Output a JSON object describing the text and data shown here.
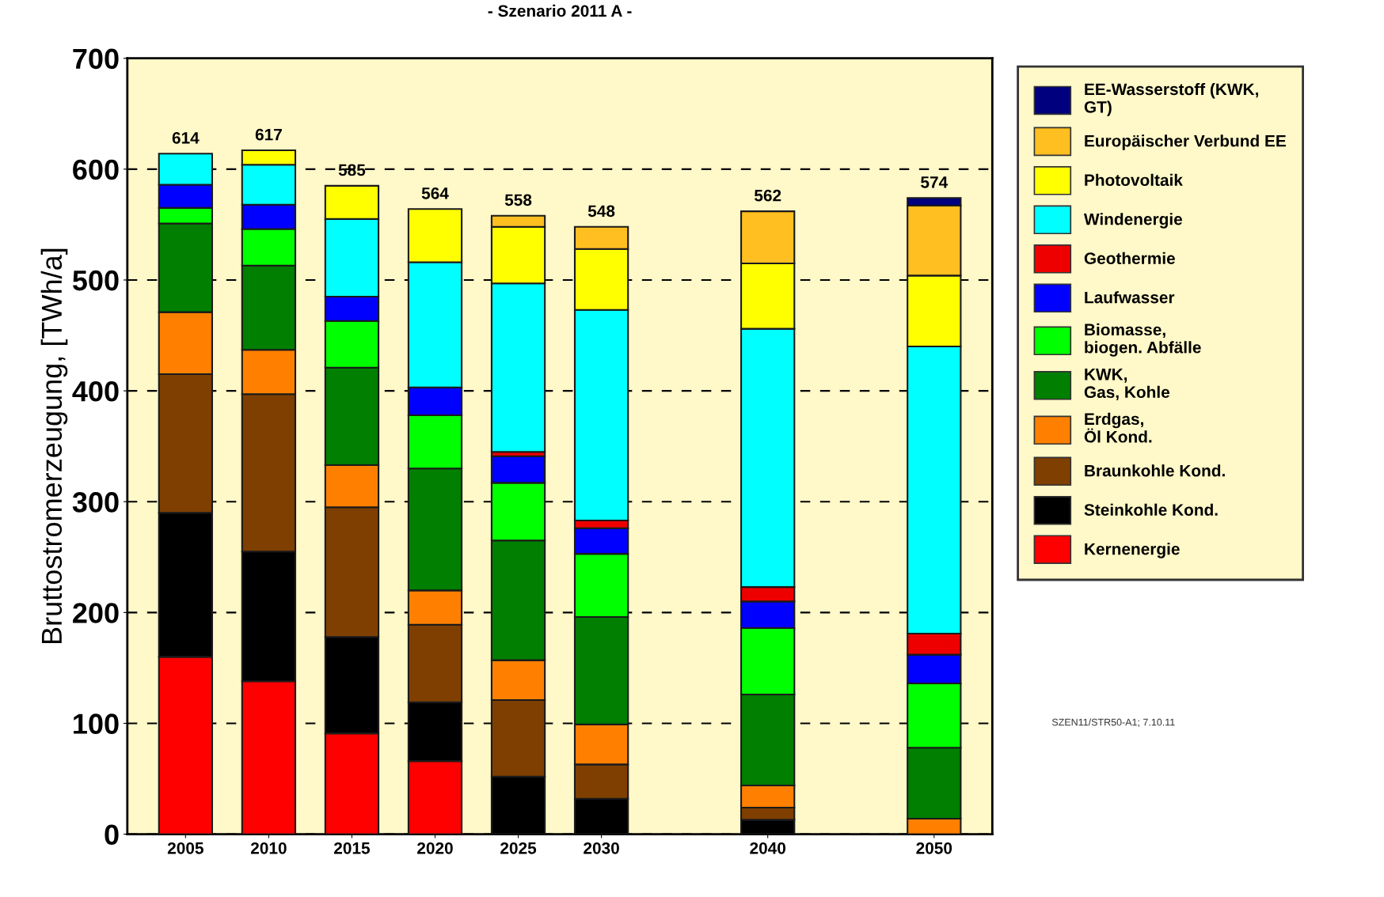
{
  "chart_data": {
    "type": "bar",
    "stacked": true,
    "title": "- Szenario 2011 A -",
    "ylabel": "Bruttostromerzeugung, [TWh/a]",
    "x": [
      2005,
      2010,
      2015,
      2020,
      2025,
      2030,
      2040,
      2050
    ],
    "xlim": [
      2001.5,
      2053.5
    ],
    "xticks": [
      2005,
      2010,
      2015,
      2020,
      2025,
      2030,
      2040,
      2050
    ],
    "ylim": [
      0,
      700
    ],
    "yticks": [
      0,
      100,
      200,
      300,
      400,
      500,
      600,
      700
    ],
    "grid": "y",
    "legend": "right",
    "series": [
      {
        "name": "Kernenergie",
        "color": "#ff0000",
        "values": [
          160,
          138,
          91,
          66,
          0,
          0,
          0,
          0
        ]
      },
      {
        "name": "Steinkohle Kond.",
        "color": "#000000",
        "values": [
          130,
          117,
          87,
          53,
          52,
          32,
          13,
          0
        ]
      },
      {
        "name": "Braunkohle Kond.",
        "color": "#7f3f00",
        "values": [
          125,
          142,
          117,
          70,
          69,
          31,
          11,
          0
        ]
      },
      {
        "name": "Erdgas, Öl Kond.",
        "color": "#ff8000",
        "values": [
          56,
          40,
          38,
          31,
          36,
          36,
          20,
          14
        ]
      },
      {
        "name": "KWK, Gas, Kohle",
        "color": "#007f00",
        "values": [
          80,
          76,
          88,
          110,
          108,
          97,
          82,
          64
        ]
      },
      {
        "name": "Biomasse, biogen. Abfälle",
        "color": "#00ff00",
        "values": [
          14,
          33,
          42,
          48,
          52,
          57,
          60,
          58
        ]
      },
      {
        "name": "Laufwasser",
        "color": "#0000ff",
        "values": [
          21,
          22,
          22,
          25,
          24,
          23,
          24,
          26
        ]
      },
      {
        "name": "Geothermie",
        "color": "#ee0000",
        "values": [
          0,
          0,
          0,
          0,
          4,
          7,
          13,
          19
        ]
      },
      {
        "name": "Windenergie",
        "color": "#00ffff",
        "values": [
          28,
          36,
          70,
          113,
          152,
          190,
          233,
          259
        ]
      },
      {
        "name": "Photovoltaik",
        "color": "#ffff00",
        "values": [
          0,
          13,
          30,
          48,
          51,
          55,
          59,
          64
        ]
      },
      {
        "name": "Europäischer Verbund EE",
        "color": "#ffbf20",
        "values": [
          0,
          0,
          0,
          0,
          10,
          20,
          47,
          63
        ]
      },
      {
        "name": "EE-Wasserstoff (KWK, GT)",
        "color": "#00007f",
        "values": [
          0,
          0,
          0,
          0,
          0,
          0,
          0,
          7
        ]
      }
    ],
    "totals": [
      "614",
      "617",
      "585",
      "564",
      "558",
      "548",
      "562",
      "574"
    ],
    "annotations": [
      "SZEN11/STR50-A1; 7.10.11"
    ]
  }
}
